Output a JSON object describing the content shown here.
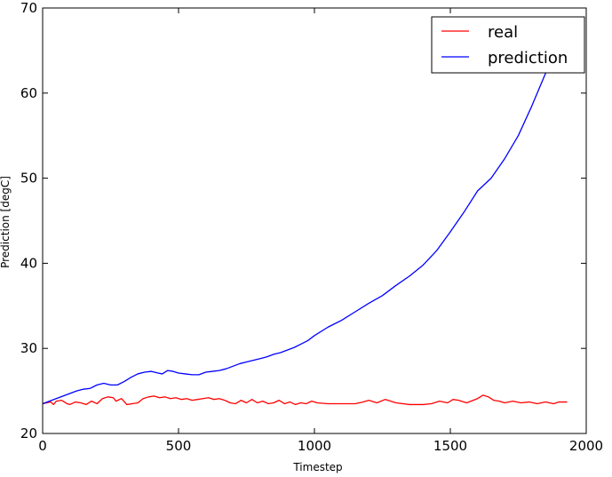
{
  "chart_data": {
    "type": "line",
    "title": "",
    "xlabel": "Timestep",
    "ylabel": "Prediction [degC]",
    "xlim": [
      0,
      2000
    ],
    "ylim": [
      20,
      70
    ],
    "xticks": [
      0,
      500,
      1000,
      1500,
      2000
    ],
    "yticks": [
      20,
      30,
      40,
      50,
      60,
      70
    ],
    "grid": false,
    "legend_position": "top-right",
    "series": [
      {
        "name": "real",
        "color": "#ff0000",
        "x": [
          0,
          30,
          40,
          50,
          70,
          90,
          100,
          120,
          140,
          160,
          180,
          200,
          220,
          240,
          260,
          270,
          290,
          310,
          330,
          350,
          370,
          390,
          410,
          430,
          450,
          470,
          490,
          510,
          530,
          550,
          570,
          590,
          610,
          630,
          650,
          670,
          690,
          710,
          730,
          750,
          770,
          790,
          810,
          830,
          850,
          870,
          890,
          910,
          930,
          950,
          970,
          990,
          1010,
          1050,
          1100,
          1150,
          1180,
          1200,
          1230,
          1260,
          1300,
          1350,
          1400,
          1430,
          1460,
          1490,
          1510,
          1530,
          1560,
          1600,
          1620,
          1640,
          1660,
          1680,
          1700,
          1730,
          1760,
          1790,
          1820,
          1850,
          1880,
          1900,
          1930
        ],
        "y": [
          23.5,
          23.7,
          23.4,
          23.8,
          23.9,
          23.5,
          23.4,
          23.7,
          23.6,
          23.4,
          23.8,
          23.5,
          24.1,
          24.3,
          24.2,
          23.8,
          24.1,
          23.4,
          23.5,
          23.6,
          24.1,
          24.3,
          24.4,
          24.2,
          24.3,
          24.1,
          24.2,
          24.0,
          24.1,
          23.9,
          24.0,
          24.1,
          24.2,
          24.0,
          24.1,
          23.9,
          23.6,
          23.5,
          23.9,
          23.6,
          24.0,
          23.6,
          23.8,
          23.5,
          23.6,
          23.9,
          23.5,
          23.7,
          23.4,
          23.6,
          23.5,
          23.8,
          23.6,
          23.5,
          23.5,
          23.5,
          23.7,
          23.9,
          23.6,
          24.0,
          23.6,
          23.4,
          23.4,
          23.5,
          23.8,
          23.6,
          24.0,
          23.9,
          23.6,
          24.1,
          24.5,
          24.3,
          23.9,
          23.8,
          23.6,
          23.8,
          23.6,
          23.7,
          23.5,
          23.7,
          23.5,
          23.7,
          23.7
        ]
      },
      {
        "name": "prediction",
        "color": "#0000ff",
        "x": [
          0,
          25,
          50,
          75,
          100,
          125,
          150,
          175,
          200,
          225,
          250,
          275,
          300,
          325,
          350,
          375,
          400,
          425,
          440,
          460,
          480,
          500,
          525,
          550,
          575,
          600,
          625,
          650,
          675,
          700,
          725,
          750,
          775,
          800,
          825,
          850,
          875,
          900,
          925,
          950,
          975,
          1000,
          1050,
          1100,
          1150,
          1200,
          1250,
          1300,
          1350,
          1400,
          1450,
          1500,
          1550,
          1600,
          1650,
          1700,
          1750,
          1800,
          1850,
          1860
        ],
        "y": [
          23.5,
          23.8,
          24.1,
          24.4,
          24.7,
          25.0,
          25.2,
          25.3,
          25.7,
          25.9,
          25.7,
          25.7,
          26.1,
          26.6,
          27.0,
          27.2,
          27.3,
          27.1,
          27.0,
          27.4,
          27.3,
          27.1,
          27.0,
          26.9,
          26.9,
          27.2,
          27.3,
          27.4,
          27.6,
          27.9,
          28.2,
          28.4,
          28.6,
          28.8,
          29.0,
          29.3,
          29.5,
          29.8,
          30.1,
          30.5,
          30.9,
          31.5,
          32.5,
          33.3,
          34.3,
          35.3,
          36.2,
          37.4,
          38.5,
          39.8,
          41.5,
          43.7,
          46.0,
          48.5,
          50.0,
          52.3,
          55.0,
          58.5,
          62.3,
          63.5
        ]
      }
    ]
  }
}
